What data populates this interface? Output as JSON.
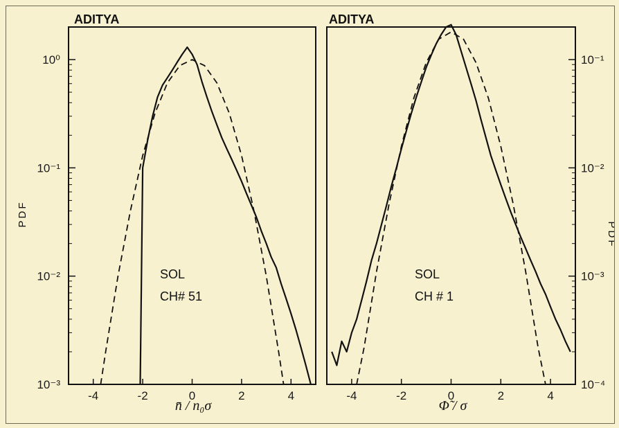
{
  "chart_data": [
    {
      "type": "line",
      "title": "ADITYA",
      "xlabel": "n̄ / n₀σ",
      "ylabel": "PDF",
      "xlim": [
        -5,
        5
      ],
      "ylim": [
        0.001,
        2
      ],
      "yscale": "log",
      "x_ticks": [
        "-4",
        "-2",
        "0",
        "2",
        "4"
      ],
      "y_ticks": [
        "10⁰",
        "10⁻¹",
        "10⁻²",
        "10⁻³"
      ],
      "annotations": [
        "SOL",
        "CH# 51"
      ],
      "series": [
        {
          "style": "solid",
          "x": [
            -2.1,
            -2.05,
            -2.0,
            -1.8,
            -1.6,
            -1.4,
            -1.2,
            -1.0,
            -0.8,
            -0.6,
            -0.4,
            -0.2,
            0.0,
            0.2,
            0.4,
            0.6,
            0.8,
            1.0,
            1.2,
            1.4,
            1.6,
            1.8,
            2.0,
            2.2,
            2.4,
            2.6,
            2.8,
            3.0,
            3.2,
            3.4,
            3.6,
            3.8,
            4.0,
            4.2,
            4.4,
            4.6,
            4.8
          ],
          "y": [
            0.001,
            0.01,
            0.1,
            0.18,
            0.3,
            0.45,
            0.58,
            0.68,
            0.8,
            0.95,
            1.12,
            1.3,
            1.12,
            0.9,
            0.62,
            0.45,
            0.33,
            0.25,
            0.19,
            0.15,
            0.12,
            0.095,
            0.075,
            0.058,
            0.045,
            0.035,
            0.026,
            0.02,
            0.015,
            0.012,
            0.0085,
            0.0062,
            0.0045,
            0.0032,
            0.0022,
            0.0015,
            0.001
          ]
        },
        {
          "style": "dashed",
          "x": [
            -3.7,
            -3.5,
            -3.0,
            -2.5,
            -2.0,
            -1.5,
            -1.0,
            -0.5,
            0.0,
            0.5,
            1.0,
            1.5,
            2.0,
            2.5,
            3.0,
            3.5,
            3.7
          ],
          "y": [
            0.001,
            0.002,
            0.01,
            0.04,
            0.13,
            0.32,
            0.61,
            0.88,
            1.0,
            0.88,
            0.61,
            0.32,
            0.13,
            0.04,
            0.01,
            0.002,
            0.001
          ]
        }
      ]
    },
    {
      "type": "line",
      "title": "ADITYA",
      "xlabel": "Φ̃ / σ",
      "ylabel": "PDF",
      "xlim": [
        -5,
        5
      ],
      "ylim": [
        0.0001,
        0.2
      ],
      "yscale": "log",
      "x_ticks": [
        "-4",
        "-2",
        "0",
        "2",
        "4"
      ],
      "y_ticks": [
        "10⁻¹",
        "10⁻²",
        "10⁻³",
        "10⁻⁴"
      ],
      "annotations": [
        "SOL",
        "CH # 1"
      ],
      "series": [
        {
          "style": "solid",
          "x": [
            -4.8,
            -4.6,
            -4.4,
            -4.2,
            -4.0,
            -3.8,
            -3.6,
            -3.4,
            -3.2,
            -3.0,
            -2.8,
            -2.6,
            -2.4,
            -2.2,
            -2.0,
            -1.8,
            -1.6,
            -1.4,
            -1.2,
            -1.0,
            -0.8,
            -0.6,
            -0.4,
            -0.2,
            0.0,
            0.2,
            0.4,
            0.6,
            0.8,
            1.0,
            1.2,
            1.4,
            1.6,
            1.8,
            2.0,
            2.2,
            2.4,
            2.6,
            2.8,
            3.0,
            3.2,
            3.4,
            3.6,
            3.8,
            4.0,
            4.2,
            4.4,
            4.6,
            4.8
          ],
          "y": [
            0.0002,
            0.00015,
            0.00025,
            0.0002,
            0.0003,
            0.0004,
            0.0006,
            0.0009,
            0.0014,
            0.002,
            0.003,
            0.0045,
            0.0068,
            0.01,
            0.015,
            0.022,
            0.032,
            0.045,
            0.062,
            0.085,
            0.11,
            0.14,
            0.17,
            0.2,
            0.21,
            0.17,
            0.12,
            0.085,
            0.06,
            0.042,
            0.028,
            0.019,
            0.013,
            0.0095,
            0.007,
            0.0052,
            0.0039,
            0.003,
            0.0023,
            0.0018,
            0.0014,
            0.0011,
            0.00085,
            0.00068,
            0.00052,
            0.0004,
            0.00032,
            0.00025,
            0.0002
          ]
        },
        {
          "style": "dashed",
          "x": [
            -3.8,
            -3.5,
            -3.0,
            -2.5,
            -2.0,
            -1.5,
            -1.0,
            -0.5,
            0.0,
            0.5,
            1.0,
            1.5,
            2.0,
            2.5,
            3.0,
            3.5,
            3.8
          ],
          "y": [
            0.0001,
            0.00022,
            0.0011,
            0.0046,
            0.0158,
            0.044,
            0.094,
            0.154,
            0.18,
            0.154,
            0.094,
            0.044,
            0.0158,
            0.0046,
            0.0011,
            0.00022,
            0.0001
          ]
        }
      ]
    }
  ]
}
